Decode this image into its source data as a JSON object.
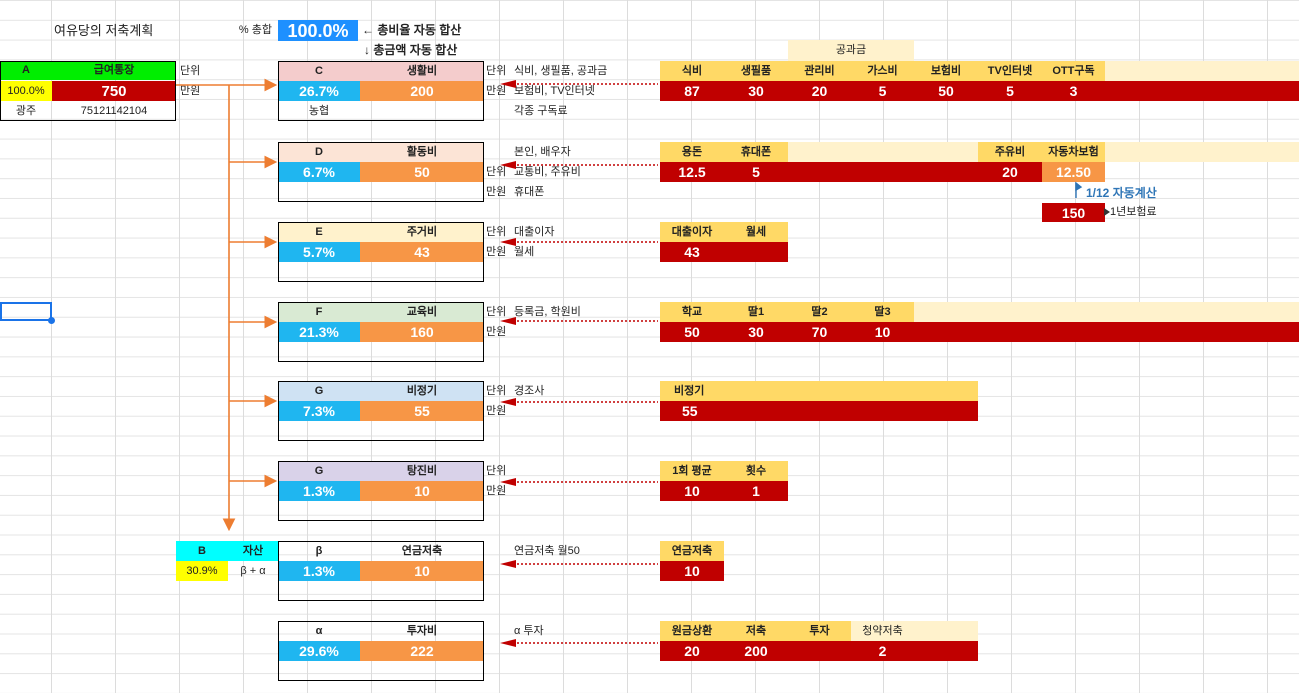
{
  "title": "여유당의 저축계획",
  "total_label": "% 총합",
  "total_value": "100.0%",
  "note_ratio": "← 총비율 자동 합산",
  "note_amount": "↓ 총금액 자동 합산",
  "unit": "단위",
  "unit_value": "만원",
  "colors": {
    "highlight_blue": "#1e90ff",
    "row_red": "#c00000",
    "header_yellow": "#ffd966",
    "light_yellow": "#fff2cc",
    "percent_blue": "#1fb6f0",
    "amount_orange": "#f79646",
    "arrow_orange": "#ed7d31"
  },
  "A": {
    "code": "A",
    "name": "급여통장",
    "pct": "100.0%",
    "amount": "750",
    "bank": "광주",
    "account": "75121142104"
  },
  "B": {
    "code": "B",
    "name": "자산",
    "pct": "30.9%",
    "formula": "β + α"
  },
  "C": {
    "code": "C",
    "name": "생활비",
    "pct": "26.7%",
    "amount": "200",
    "bank": "농협",
    "desc": [
      "식비, 생필품, 공과금",
      "보험비, TV인터넷",
      "각종 구독료"
    ],
    "group_label": "공과금",
    "headers": [
      "식비",
      "생필품",
      "관리비",
      "가스비",
      "보험비",
      "TV인터넷",
      "OTT구독"
    ],
    "values": [
      "87",
      "30",
      "20",
      "5",
      "50",
      "5",
      "3"
    ]
  },
  "D": {
    "code": "D",
    "name": "활동비",
    "pct": "6.7%",
    "amount": "50",
    "desc": [
      "본인, 배우자",
      "교통비, 주유비",
      "휴대폰"
    ],
    "headers": [
      "용돈",
      "휴대폰",
      "주유비",
      "자동차보험"
    ],
    "values": [
      "12.5",
      "5",
      "20",
      "12.50"
    ],
    "auto_calc": "1/12 자동계산",
    "insurance_year": "150",
    "insurance_label": "1년보험료"
  },
  "E": {
    "code": "E",
    "name": "주거비",
    "pct": "5.7%",
    "amount": "43",
    "desc": [
      "대출이자",
      "월세"
    ],
    "headers": [
      "대출이자",
      "월세"
    ],
    "values": [
      "43",
      ""
    ]
  },
  "F": {
    "code": "F",
    "name": "교육비",
    "pct": "21.3%",
    "amount": "160",
    "desc": [
      "등록금, 학원비"
    ],
    "headers": [
      "학교",
      "딸1",
      "딸2",
      "딸3"
    ],
    "values": [
      "50",
      "30",
      "70",
      "10"
    ]
  },
  "G1": {
    "code": "G",
    "name": "비정기",
    "pct": "7.3%",
    "amount": "55",
    "desc": [
      "경조사"
    ],
    "headers": [
      "비정기"
    ],
    "values": [
      "55"
    ]
  },
  "G2": {
    "code": "G",
    "name": "탕진비",
    "pct": "1.3%",
    "amount": "10",
    "headers": [
      "1회 평균",
      "횟수"
    ],
    "values": [
      "10",
      "1"
    ]
  },
  "beta": {
    "code": "β",
    "name": "연금저축",
    "pct": "1.3%",
    "amount": "10",
    "desc": "연금저축 월50",
    "headers": [
      "연금저축"
    ],
    "values": [
      "10"
    ]
  },
  "alpha": {
    "code": "α",
    "name": "투자비",
    "pct": "29.6%",
    "amount": "222",
    "desc": "α 투자",
    "headers": [
      "원금상환",
      "저축",
      "투자",
      "청약저축"
    ],
    "values": [
      "20",
      "200",
      "",
      "2"
    ]
  }
}
